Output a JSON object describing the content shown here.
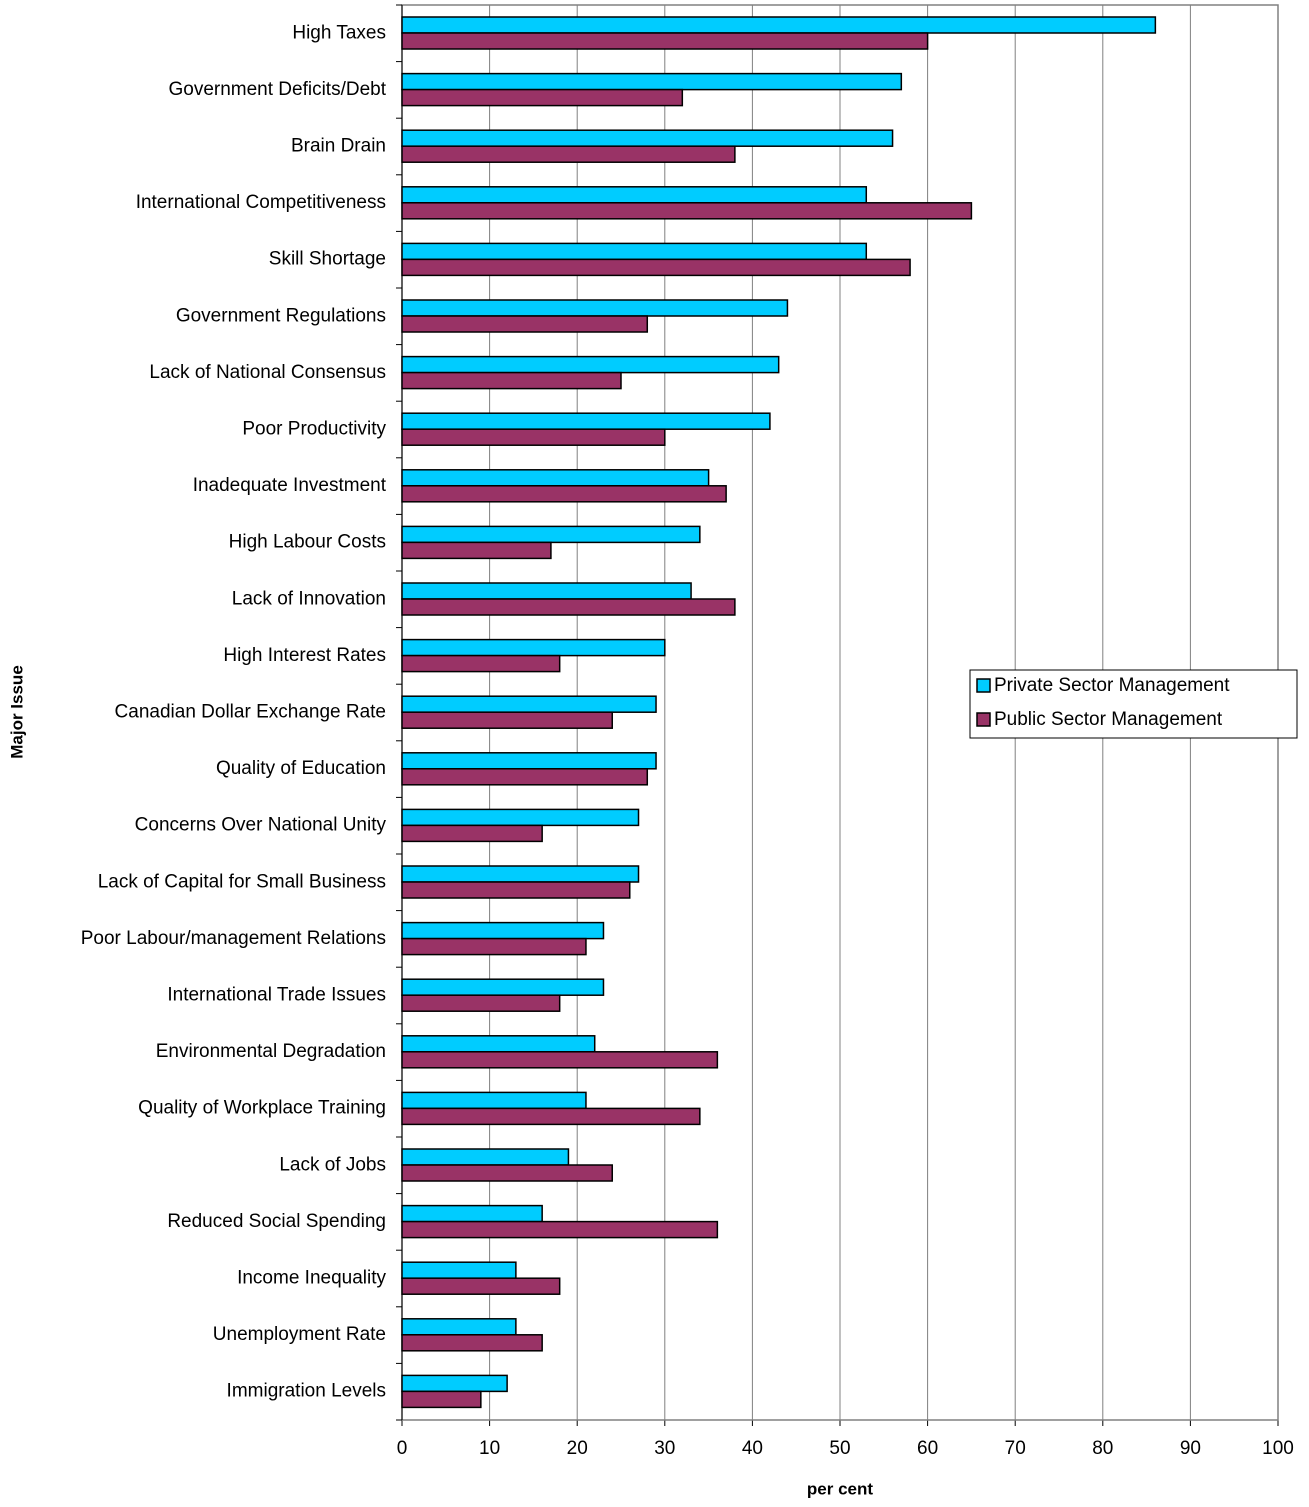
{
  "chart_data": {
    "type": "hbar",
    "x_label": "per cent",
    "y_label": "Major Issue",
    "categories": [
      "High Taxes",
      "Government Deficits/Debt",
      "Brain Drain",
      "International Competitiveness",
      "Skill Shortage",
      "Government Regulations",
      "Lack of National Consensus",
      "Poor Productivity",
      "Inadequate Investment",
      "High Labour Costs",
      "Lack of Innovation",
      "High Interest Rates",
      "Canadian Dollar Exchange Rate",
      "Quality of Education",
      "Concerns Over National Unity",
      "Lack of Capital for Small Business",
      "Poor Labour/management Relations",
      "International Trade Issues",
      "Environmental Degradation",
      "Quality of Workplace Training",
      "Lack of Jobs",
      "Reduced Social Spending",
      "Income Inequality",
      "Unemployment Rate",
      "Immigration Levels"
    ],
    "series": [
      {
        "name": "Private Sector Management",
        "color": "#00ccff",
        "values": [
          86,
          57,
          56,
          53,
          53,
          44,
          43,
          42,
          35,
          34,
          33,
          30,
          29,
          29,
          27,
          27,
          23,
          23,
          22,
          21,
          19,
          16,
          13,
          13,
          12
        ]
      },
      {
        "name": "Public Sector Management",
        "color": "#993366",
        "values": [
          60,
          32,
          38,
          65,
          58,
          28,
          25,
          30,
          37,
          17,
          38,
          18,
          24,
          28,
          16,
          26,
          21,
          18,
          36,
          34,
          24,
          36,
          18,
          16,
          9
        ]
      }
    ],
    "xlim": [
      0,
      100
    ],
    "xticks": [
      0,
      10,
      20,
      30,
      40,
      50,
      60,
      70,
      80,
      90,
      100
    ],
    "grid": true,
    "legend": "right"
  }
}
